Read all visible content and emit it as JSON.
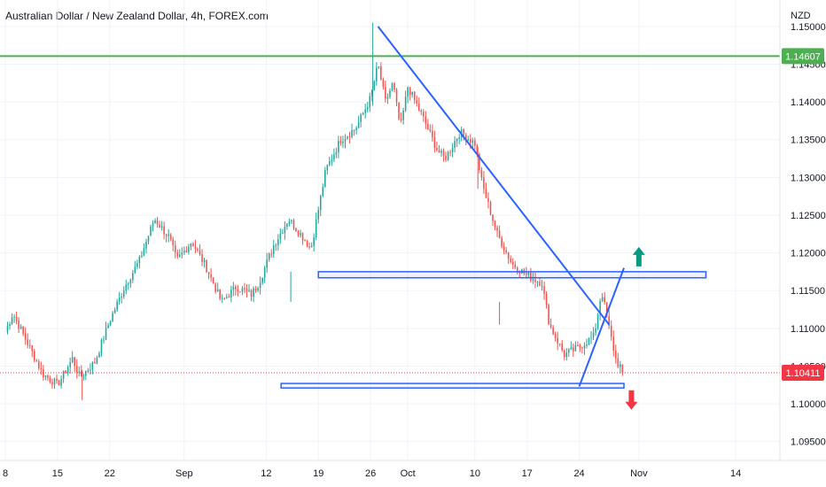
{
  "chart_data": {
    "type": "candlestick",
    "title": "Australian Dollar / New Zealand Dollar, 4h, FOREX.com",
    "currency_label": "NZD",
    "y_ticks": [
      "1.09500",
      "1.10000",
      "1.10500",
      "1.11000",
      "1.11500",
      "1.12000",
      "1.12500",
      "1.13000",
      "1.13500",
      "1.14000",
      "1.14500",
      "1.15000"
    ],
    "y_range": [
      1.0925,
      1.1535
    ],
    "x_ticks": [
      {
        "label": "8",
        "day": 0
      },
      {
        "label": "15",
        "day": 7
      },
      {
        "label": "22",
        "day": 14
      },
      {
        "label": "Sep",
        "day": 24
      },
      {
        "label": "12",
        "day": 35
      },
      {
        "label": "19",
        "day": 42
      },
      {
        "label": "26",
        "day": 49
      },
      {
        "label": "Oct",
        "day": 54
      },
      {
        "label": "10",
        "day": 63
      },
      {
        "label": "17",
        "day": 70
      },
      {
        "label": "24",
        "day": 77
      },
      {
        "label": "Nov",
        "day": 85
      },
      {
        "label": "14",
        "day": 98
      }
    ],
    "x_range_days": [
      0,
      104
    ],
    "current_price": "1.10411",
    "resistance_level": "1.14607",
    "colors": {
      "up": "#26a69a",
      "down": "#ef5350",
      "resistance": "#4caf50",
      "annotation": "#2962ff",
      "price_line": "#f23645",
      "up_arrow": "#089981",
      "down_arrow": "#f23645"
    },
    "anchors": [
      [
        0,
        1.1095
      ],
      [
        1,
        1.112
      ],
      [
        3,
        1.108
      ],
      [
        5,
        1.104
      ],
      [
        7,
        1.1025
      ],
      [
        9,
        1.106
      ],
      [
        10,
        1.1035
      ],
      [
        12,
        1.1055
      ],
      [
        14,
        1.111
      ],
      [
        16,
        1.1155
      ],
      [
        18,
        1.119
      ],
      [
        20,
        1.1245
      ],
      [
        22,
        1.122
      ],
      [
        23,
        1.119
      ],
      [
        25,
        1.1215
      ],
      [
        27,
        1.118
      ],
      [
        29,
        1.1135
      ],
      [
        31,
        1.1155
      ],
      [
        33,
        1.1145
      ],
      [
        34,
        1.116
      ],
      [
        36,
        1.121
      ],
      [
        38,
        1.1245
      ],
      [
        40,
        1.122
      ],
      [
        41,
        1.1205
      ],
      [
        43,
        1.131
      ],
      [
        45,
        1.135
      ],
      [
        47,
        1.1365
      ],
      [
        49,
        1.1405
      ],
      [
        50,
        1.145
      ],
      [
        51,
        1.14
      ],
      [
        52,
        1.1425
      ],
      [
        53,
        1.1365
      ],
      [
        54,
        1.142
      ],
      [
        56,
        1.138
      ],
      [
        58,
        1.1335
      ],
      [
        59,
        1.1325
      ],
      [
        61,
        1.136
      ],
      [
        63,
        1.1345
      ],
      [
        64,
        1.129
      ],
      [
        66,
        1.1225
      ],
      [
        68,
        1.1185
      ],
      [
        70,
        1.117
      ],
      [
        72,
        1.116
      ],
      [
        73,
        1.1105
      ],
      [
        75,
        1.1065
      ],
      [
        77,
        1.1075
      ],
      [
        79,
        1.109
      ],
      [
        80,
        1.115
      ],
      [
        81,
        1.11
      ],
      [
        82,
        1.1055
      ],
      [
        83,
        1.1045
      ]
    ],
    "annotations": {
      "trendline": [
        [
          50,
          1.15
        ],
        [
          81,
          1.1105
        ]
      ],
      "wedge_line": [
        [
          77,
          1.1023
        ],
        [
          83,
          1.118
        ]
      ],
      "upper_box": [
        [
          42,
          1.1175
        ],
        [
          94,
          1.1167
        ]
      ],
      "lower_box": [
        [
          37,
          1.1027
        ],
        [
          83,
          1.1021
        ]
      ],
      "up_arrow": [
        85,
        1.1195
      ],
      "down_arrow": [
        84,
        1.1005
      ]
    }
  }
}
